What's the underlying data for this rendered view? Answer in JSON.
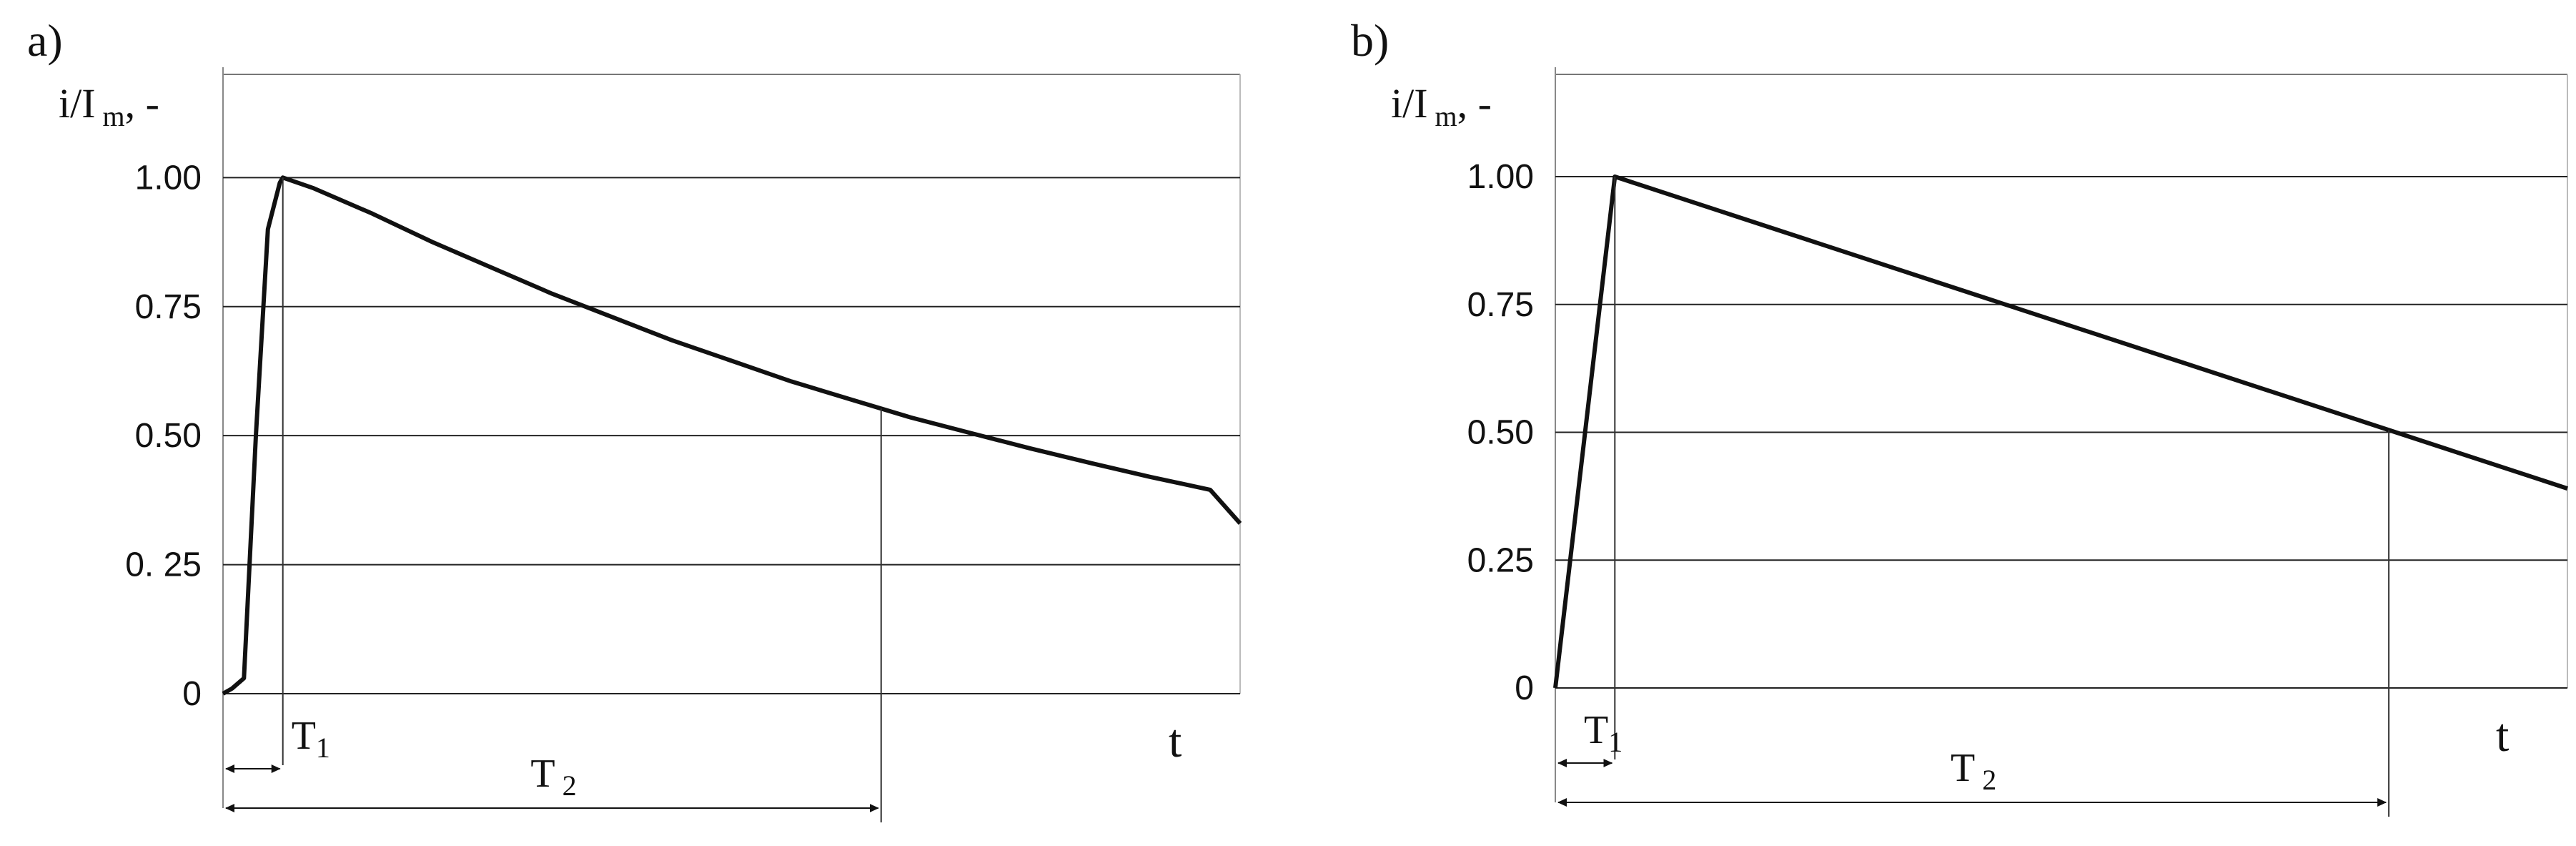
{
  "chart_data": [
    {
      "panel_label": "a)",
      "type": "line",
      "ylabel_main": "i/I",
      "ylabel_sub": "m",
      "ylabel_suffix": ", -",
      "xlabel": "t",
      "y_ticks": [
        "0",
        "0. 25",
        "0.50",
        "0.75",
        "1.00"
      ],
      "y_tick_values": [
        0,
        0.25,
        0.5,
        0.75,
        1.0
      ],
      "ylim": [
        0,
        1.2
      ],
      "xlim": [
        0,
        17
      ],
      "grid": true,
      "series": [
        {
          "x": [
            0,
            0.15,
            0.35,
            0.55,
            0.75,
            0.95,
            1.0,
            1.5,
            2.5,
            3.5,
            4.5,
            5.5,
            6.5,
            7.5,
            8.5,
            9.5,
            10.5,
            11.5,
            12.5,
            13.5,
            14.5,
            15.5,
            16.5,
            17.0
          ],
          "y": [
            0.0,
            0.01,
            0.03,
            0.5,
            0.9,
            0.99,
            1.0,
            0.98,
            0.93,
            0.875,
            0.825,
            0.775,
            0.73,
            0.685,
            0.645,
            0.605,
            0.57,
            0.535,
            0.505,
            0.475,
            0.447,
            0.42,
            0.395,
            0.33
          ]
        }
      ],
      "markers": {
        "T1_x": 1.0,
        "T2_x": 11.0,
        "T1_label": "T",
        "T1_sub": "1",
        "T2_label": "T",
        "T2_sub": "2"
      }
    },
    {
      "panel_label": "b)",
      "type": "line",
      "ylabel_main": "i/I",
      "ylabel_sub": "m",
      "ylabel_suffix": ", -",
      "xlabel": "t",
      "y_ticks": [
        "0",
        "0.25",
        "0.50",
        "0.75",
        "1.00"
      ],
      "y_tick_values": [
        0,
        0.25,
        0.5,
        0.75,
        1.0
      ],
      "ylim": [
        0,
        1.2
      ],
      "xlim": [
        0,
        17
      ],
      "grid": true,
      "series": [
        {
          "x": [
            0,
            1.0,
            17.0
          ],
          "y": [
            0.0,
            1.0,
            0.39
          ]
        }
      ],
      "markers": {
        "T1_x": 1.0,
        "T2_x": 14.0,
        "T1_label": "T",
        "T1_sub": "1",
        "T2_label": "T",
        "T2_sub": "2"
      }
    }
  ]
}
